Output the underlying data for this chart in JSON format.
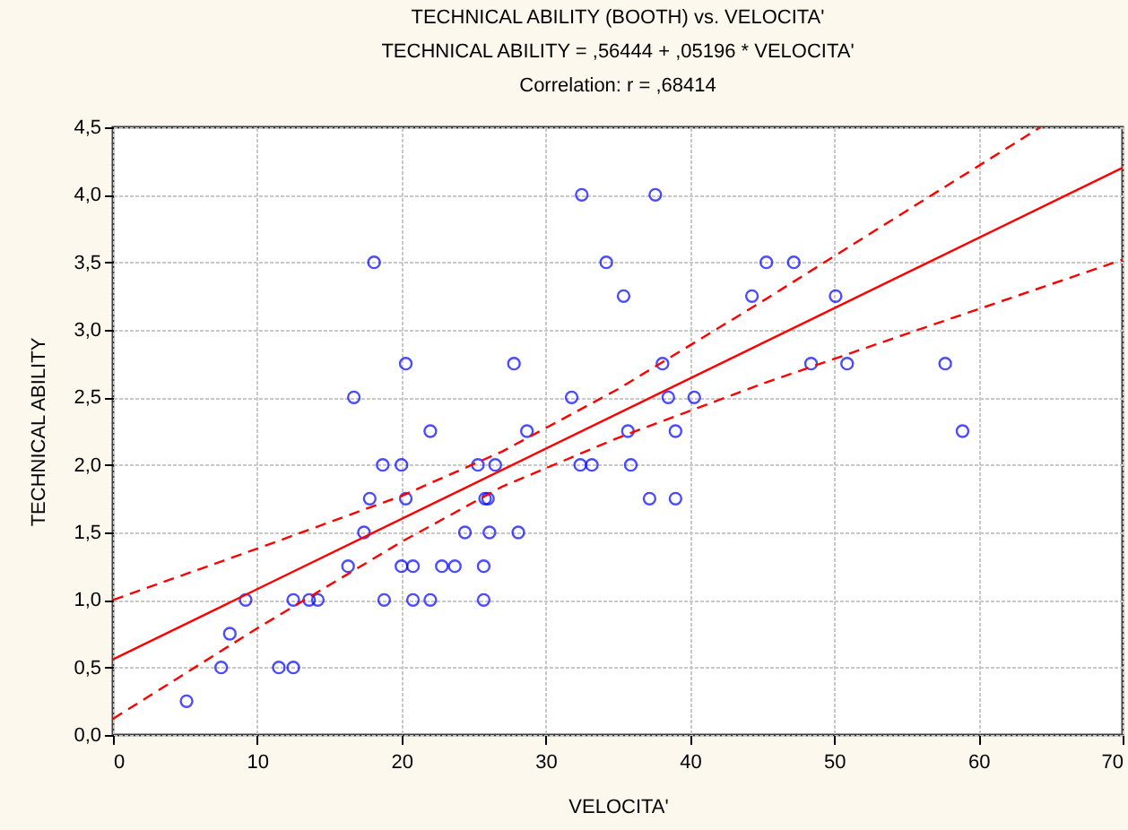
{
  "chart_data": {
    "type": "scatter",
    "title": "TECHNICAL ABILITY (BOOTH) vs. VELOCITA'",
    "subtitle": "TECHNICAL ABILITY = ,56444 + ,05196 * VELOCITA'",
    "annotations": [
      "Correlation: r = ,68414"
    ],
    "xlabel": "VELOCITA'",
    "ylabel": "TECHNICAL ABILITY",
    "series": [
      {
        "color": "#0000ff",
        "marker": "circle",
        "x": [
          5.1,
          7.5,
          8.1,
          9.2,
          11.5,
          12.5,
          12.5,
          13.6,
          14.2,
          16.3,
          16.7,
          17.4,
          17.8,
          18.1,
          18.7,
          18.8,
          20.0,
          20.0,
          20.3,
          20.3,
          20.8,
          20.8,
          22.0,
          22.0,
          22.8,
          23.7,
          24.4,
          25.3,
          25.7,
          25.7,
          25.8,
          26.0,
          26.1,
          26.5,
          27.8,
          28.1,
          28.7,
          31.8,
          32.4,
          32.5,
          33.2,
          34.2,
          35.4,
          35.7,
          35.9,
          37.2,
          37.6,
          38.1,
          38.5,
          39.0,
          39.0,
          40.3,
          44.3,
          45.3,
          47.2,
          48.4,
          50.1,
          50.9,
          57.7,
          58.9
        ],
        "values": [
          0.25,
          0.5,
          0.75,
          1.0,
          0.5,
          0.5,
          1.0,
          1.0,
          1.0,
          1.25,
          2.5,
          1.5,
          1.75,
          3.5,
          2.0,
          1.0,
          2.0,
          1.25,
          2.75,
          1.75,
          1.25,
          1.0,
          2.25,
          1.0,
          1.25,
          1.25,
          1.5,
          2.0,
          1.25,
          1.0,
          1.75,
          1.75,
          1.5,
          2.0,
          2.75,
          1.5,
          2.25,
          2.5,
          2.0,
          4.0,
          2.0,
          3.5,
          3.25,
          2.25,
          2.0,
          1.75,
          4.0,
          2.75,
          2.5,
          2.25,
          1.75,
          2.5,
          3.25,
          3.5,
          3.5,
          2.75,
          3.25,
          2.75,
          2.75,
          2.25
        ]
      },
      {
        "type": "line",
        "color": "#ff0000",
        "line_style": "solid",
        "x": [
          0,
          70
        ],
        "values": [
          0.56,
          4.2
        ]
      },
      {
        "type": "line",
        "color": "#ff0000",
        "line_style": "dashed",
        "x": [
          0,
          10,
          20,
          27,
          35,
          45,
          55,
          64.3
        ],
        "values": [
          1.0,
          1.38,
          1.77,
          2.1,
          2.56,
          3.21,
          3.88,
          4.5
        ]
      },
      {
        "type": "line",
        "color": "#ff0000",
        "line_style": "dashed",
        "x": [
          0,
          10,
          20,
          27,
          35,
          45,
          55,
          70
        ],
        "values": [
          0.12,
          0.79,
          1.43,
          1.84,
          2.2,
          2.6,
          2.97,
          3.52
        ]
      }
    ],
    "xlim": [
      0,
      70
    ],
    "xticks": [
      0,
      10,
      20,
      30,
      40,
      50,
      60,
      70
    ],
    "ylim": [
      0,
      4.5
    ],
    "yticks": [
      {
        "value": 0,
        "label": "0,0"
      },
      {
        "value": 0.5,
        "label": "0,5"
      },
      {
        "value": 1,
        "label": "1,0"
      },
      {
        "value": 1.5,
        "label": "1,5"
      },
      {
        "value": 2,
        "label": "2,0"
      },
      {
        "value": 2.5,
        "label": "2,5"
      },
      {
        "value": 3,
        "label": "3,0"
      },
      {
        "value": 3.5,
        "label": "3,5"
      },
      {
        "value": 4,
        "label": "4,0"
      },
      {
        "value": 4.5,
        "label": "4,5"
      }
    ],
    "grid": true
  }
}
